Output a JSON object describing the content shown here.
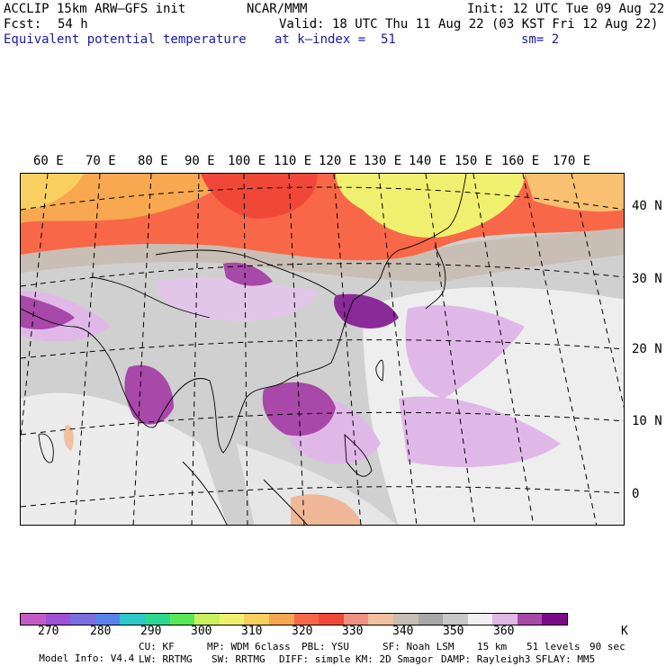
{
  "header": {
    "model": "ACCLIP 15km ARW–GFS init",
    "org": "NCAR/MMM",
    "init": "Init: 12 UTC Tue 09 Aug 22",
    "fcst_label": "Fcst:",
    "fcst_value": "54 h",
    "valid": "Valid: 18 UTC Thu 11 Aug 22 (03 KST Fri 12 Aug 22)",
    "field": "Equivalent potential temperature",
    "level": "at k–index =  51",
    "smooth": "sm= 2"
  },
  "map": {
    "lon_labels": [
      "60 E",
      "70 E",
      "80 E",
      "90 E",
      "100 E",
      "110 E",
      "120 E",
      "130 E",
      "140 E",
      "150 E",
      "160 E",
      "170 E"
    ],
    "lat_labels": [
      "40 N",
      "30 N",
      "20 N",
      "10 N",
      "0"
    ]
  },
  "colorbar": {
    "colors": [
      "#c45ac8",
      "#a050d8",
      "#7a6ee0",
      "#5a82ec",
      "#2ec8c8",
      "#2ed890",
      "#58e858",
      "#c8f060",
      "#f0f070",
      "#f8d060",
      "#f8a850",
      "#f86848",
      "#f04838",
      "#f09080",
      "#f0c0a0",
      "#c8beb4",
      "#a8a8a8",
      "#c8c8c8",
      "#f0f0f0",
      "#e0b8e8",
      "#a848a8",
      "#7a0a88"
    ],
    "tick_labels": [
      "270",
      "280",
      "290",
      "300",
      "310",
      "320",
      "330",
      "340",
      "350",
      "360"
    ],
    "unit": "K"
  },
  "model_info": {
    "line1": [
      "Model Info: V4.4",
      "CU: KF",
      "MP: WDM 6class",
      "PBL: YSU",
      "SF: Noah LSM",
      "15 km",
      "51 levels",
      "90 sec"
    ],
    "line2": [
      "LW: RRTMG",
      "SW: RRTMG",
      "DIFF: simple",
      "KM: 2D Smagor",
      "DAMP: Rayleigh3",
      "SFLAY: MM5"
    ]
  }
}
